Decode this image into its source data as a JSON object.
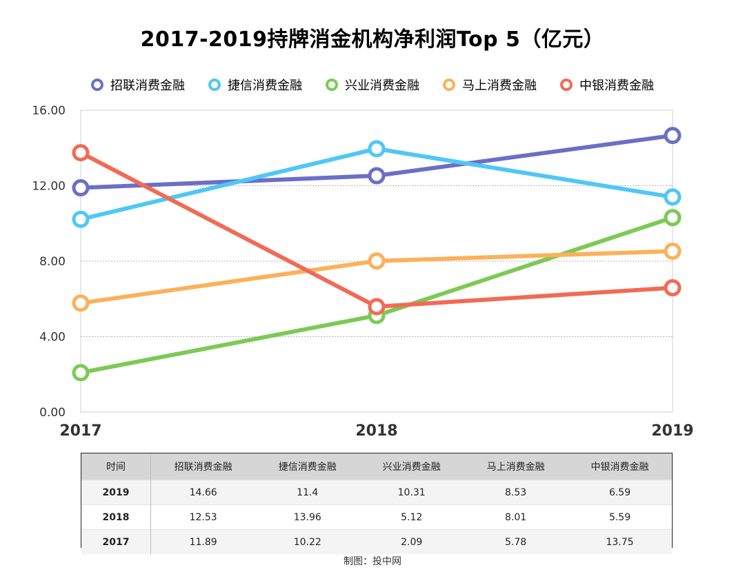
{
  "chart_data": {
    "type": "line",
    "title": "2017-2019持牌消金机构净利润Top 5（亿元）",
    "x": [
      "2017",
      "2018",
      "2019"
    ],
    "ylim": [
      0,
      16
    ],
    "yticks": [
      "0.00",
      "4.00",
      "8.00",
      "12.00",
      "16.00"
    ],
    "grid": true,
    "legend_position": "top",
    "series": [
      {
        "name": "招联消费金融",
        "color": "#6b6fc7",
        "values": [
          11.89,
          12.53,
          14.66
        ]
      },
      {
        "name": "捷信消费金融",
        "color": "#4fc7f5",
        "values": [
          10.22,
          13.96,
          11.4
        ]
      },
      {
        "name": "兴业消费金融",
        "color": "#7dc955",
        "values": [
          2.09,
          5.12,
          10.31
        ]
      },
      {
        "name": "马上消费金融",
        "color": "#fbb15a",
        "values": [
          5.78,
          8.01,
          8.53
        ]
      },
      {
        "name": "中银消费金融",
        "color": "#f26a55",
        "values": [
          13.75,
          5.59,
          6.59
        ]
      }
    ]
  },
  "table": {
    "headers": [
      "时间",
      "招联消费金融",
      "捷信消费金融",
      "兴业消费金融",
      "马上消费金融",
      "中银消费金融"
    ],
    "rows": [
      [
        "2019",
        "14.66",
        "11.4",
        "10.31",
        "8.53",
        "6.59"
      ],
      [
        "2018",
        "12.53",
        "13.96",
        "5.12",
        "8.01",
        "5.59"
      ],
      [
        "2017",
        "11.89",
        "10.22",
        "2.09",
        "5.78",
        "13.75"
      ]
    ]
  },
  "source": "制图：投中网"
}
